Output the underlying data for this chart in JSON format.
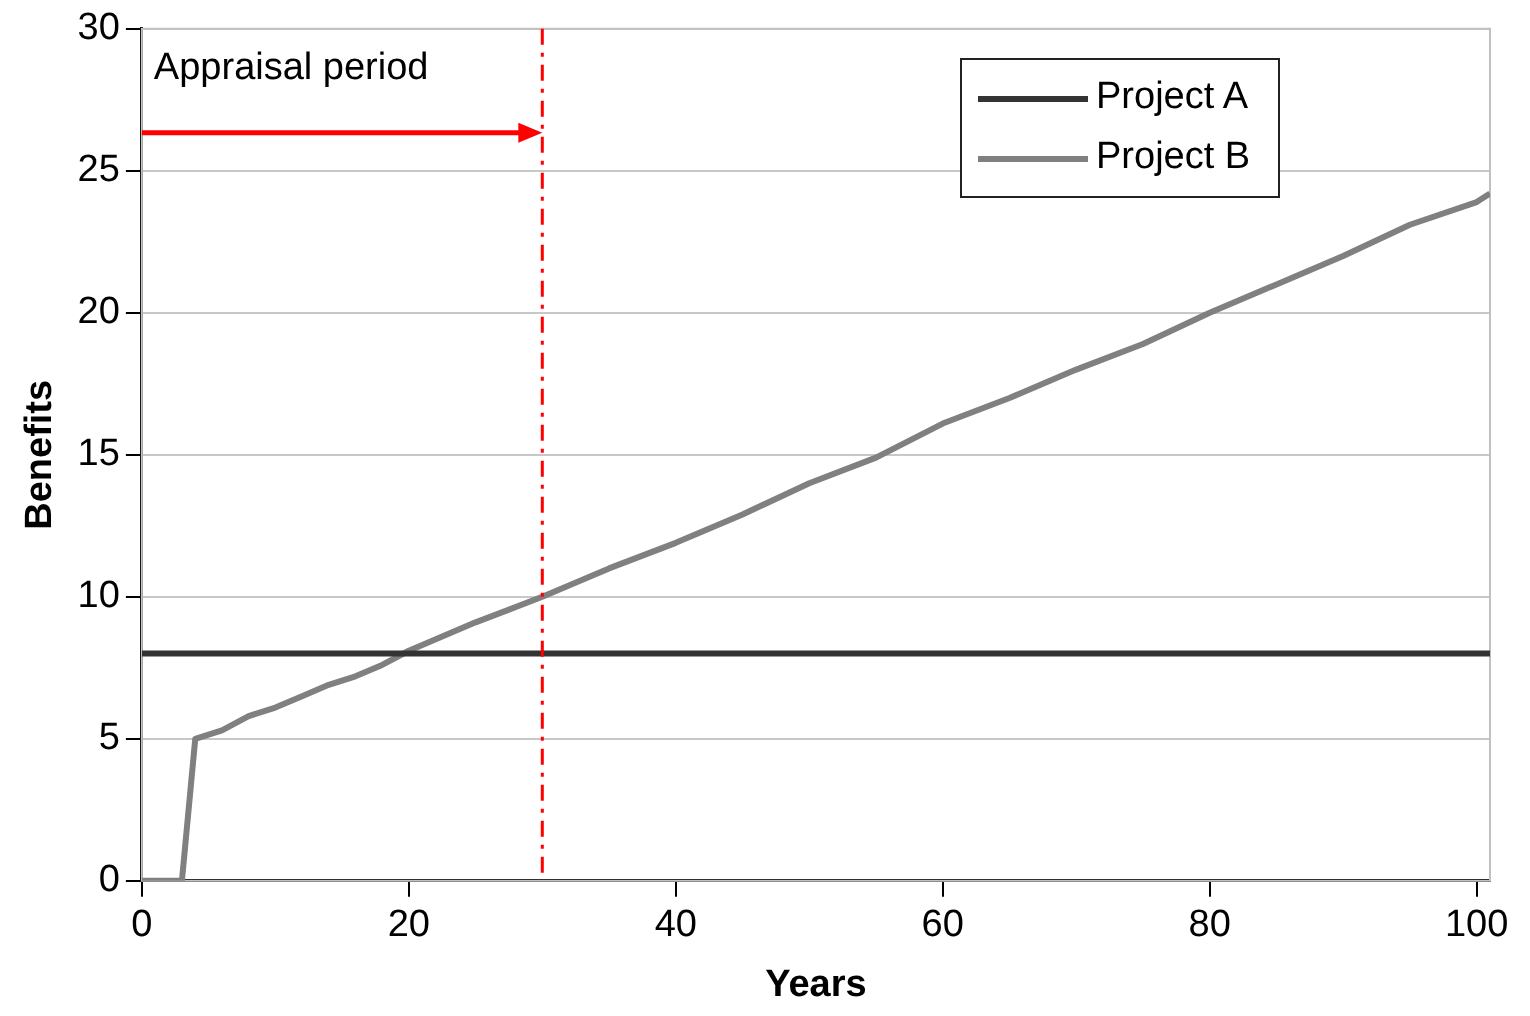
{
  "chart_data": {
    "type": "line",
    "xlabel": "Years",
    "ylabel": "Benefits",
    "xlim": [
      0,
      101
    ],
    "xticks": [
      0,
      20,
      40,
      60,
      80,
      100
    ],
    "ylim": [
      0,
      30
    ],
    "yticks": [
      0,
      5,
      10,
      15,
      20,
      25,
      30
    ],
    "grid": "y",
    "legend": "top right",
    "marker": "none",
    "line_style": "solid",
    "series": [
      {
        "name": "Project A",
        "color": "#333333",
        "x": [
          0,
          101
        ],
        "values": [
          8,
          8
        ]
      },
      {
        "name": "Project B",
        "color": "#808080",
        "x": [
          0,
          3,
          4,
          6,
          8,
          10,
          12,
          14,
          16,
          18,
          20,
          25,
          30,
          35,
          40,
          45,
          50,
          55,
          60,
          65,
          70,
          75,
          80,
          85,
          90,
          95,
          100,
          101
        ],
        "values": [
          0,
          0,
          5,
          5.3,
          5.8,
          6.1,
          6.5,
          6.9,
          7.2,
          7.6,
          8.1,
          9.1,
          10,
          11,
          11.9,
          12.9,
          14,
          14.9,
          16.1,
          17,
          18,
          18.9,
          20,
          21,
          22,
          23.1,
          23.9,
          24.2
        ]
      }
    ],
    "ref_lines": [
      {
        "axis": "x",
        "value": 30,
        "label": "Appraisal period",
        "color": "#ff0000",
        "line_style": "dashed"
      }
    ]
  }
}
